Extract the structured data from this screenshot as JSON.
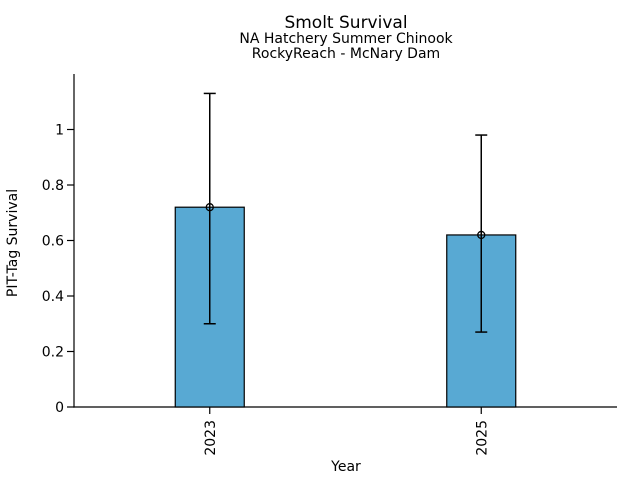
{
  "chart_data": {
    "type": "bar",
    "title": "Smolt Survival",
    "subtitle_lines": [
      "NA Hatchery Summer Chinook",
      "RockyReach - McNary Dam"
    ],
    "xlabel": "Year",
    "ylabel": "PIT-Tag Survival",
    "categories": [
      "2023",
      "2025"
    ],
    "values": [
      0.72,
      0.62
    ],
    "error_low": [
      0.3,
      0.27
    ],
    "error_high": [
      1.13,
      0.98
    ],
    "yticks": [
      0,
      0.2,
      0.4,
      0.6,
      0.8,
      1
    ],
    "ytick_labels": [
      "0",
      "0.2",
      "0.4",
      "0.6",
      "0.8",
      "1"
    ],
    "ylim": [
      0,
      1.2
    ],
    "xtick_rotation_deg": 90,
    "marker": "open-circle",
    "grid": false,
    "legend": "none",
    "colors": {
      "bar_fill": "#58A9D3",
      "bar_edge": "#000000",
      "axis": "#000000",
      "text": "#000000",
      "background": "#FFFFFF"
    }
  }
}
